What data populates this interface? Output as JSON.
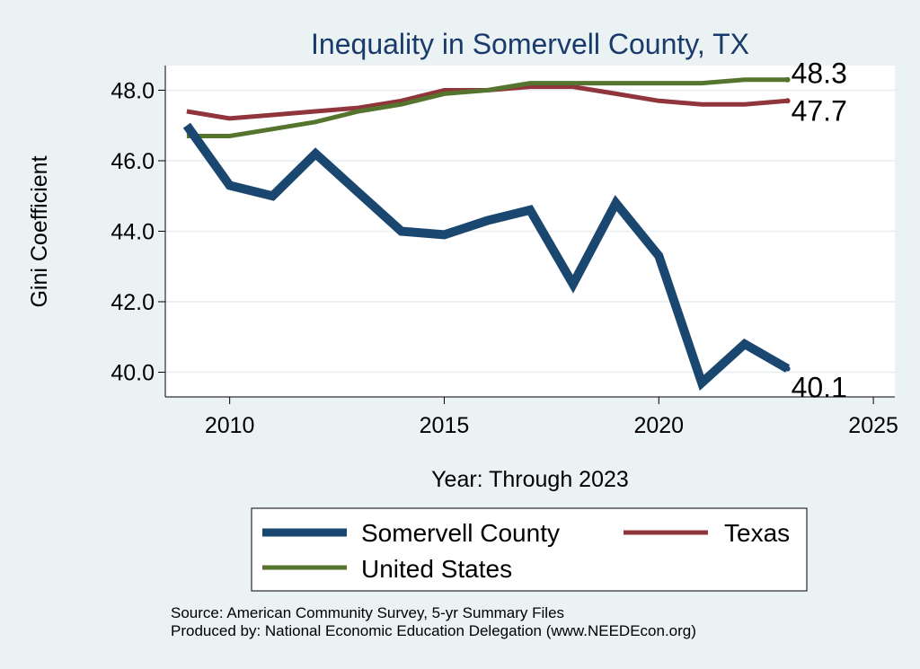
{
  "chart_data": {
    "type": "line",
    "title": "Inequality in Somervell County, TX",
    "xlabel": "Year: Through 2023",
    "ylabel": "Gini Coefficient",
    "xlim": [
      2008.5,
      2025.5
    ],
    "ylim": [
      39.3,
      48.7
    ],
    "x_ticks": [
      2010,
      2015,
      2020,
      2025
    ],
    "y_ticks": [
      40.0,
      42.0,
      44.0,
      46.0,
      48.0
    ],
    "y_tick_labels": [
      "40.0",
      "42.0",
      "44.0",
      "46.0",
      "48.0"
    ],
    "grid": "horizontal",
    "legend_position": "bottom",
    "x": [
      2009,
      2010,
      2011,
      2012,
      2013,
      2014,
      2015,
      2016,
      2017,
      2018,
      2019,
      2020,
      2021,
      2022,
      2023
    ],
    "series": [
      {
        "name": "Somervell County",
        "color": "#1a476f",
        "values": [
          47.0,
          45.3,
          45.0,
          46.2,
          45.1,
          44.0,
          43.9,
          44.3,
          44.6,
          42.5,
          44.8,
          43.3,
          39.7,
          40.8,
          40.1
        ],
        "end_label": "40.1"
      },
      {
        "name": "Texas",
        "color": "#90353b",
        "values": [
          47.4,
          47.2,
          47.3,
          47.4,
          47.5,
          47.7,
          48.0,
          48.0,
          48.1,
          48.1,
          47.9,
          47.7,
          47.6,
          47.6,
          47.7
        ],
        "end_label": "47.7"
      },
      {
        "name": "United States",
        "color": "#55752f",
        "values": [
          46.7,
          46.7,
          46.9,
          47.1,
          47.4,
          47.6,
          47.9,
          48.0,
          48.2,
          48.2,
          48.2,
          48.2,
          48.2,
          48.3,
          48.3
        ],
        "end_label": "48.3"
      }
    ],
    "legend": {
      "entries": [
        "Somervell County",
        "Texas",
        "United States"
      ]
    },
    "notes": [
      "Source: American Community Survey, 5-yr Summary Files",
      "Produced by: National Economic Education Delegation (www.NEEDEcon.org)"
    ]
  }
}
